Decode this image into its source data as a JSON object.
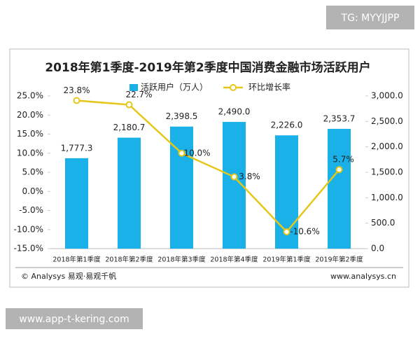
{
  "tag": "TG: MYYJJPP",
  "chart_data": {
    "type": "bar-line",
    "title": "2018年第1季度-2019年第2季度中国消费金融市场活跃用户",
    "categories": [
      "2018年第1季度",
      "2018年第2季度",
      "2018年第3季度",
      "2018年第4季度",
      "2019年第1季度",
      "2019年第2季度"
    ],
    "series": [
      {
        "name": "活跃用户（万人）",
        "type": "bar",
        "color": "#1ab0e8",
        "axis": "y2",
        "values": [
          1777.3,
          2180.7,
          2398.5,
          2490.0,
          2226.0,
          2353.7
        ],
        "value_labels": [
          "1,777.3",
          "2,180.7",
          "2,398.5",
          "2,490.0",
          "2,226.0",
          "2,353.7"
        ]
      },
      {
        "name": "环比增长率",
        "type": "line",
        "color": "#e6c619",
        "axis": "y",
        "values": [
          23.8,
          22.7,
          10.0,
          3.8,
          -10.6,
          5.7
        ],
        "value_labels": [
          "23.8%",
          "22.7%",
          "10.0%",
          "3.8%",
          "-10.6%",
          "5.7%"
        ]
      }
    ],
    "ylim": [
      -15,
      25
    ],
    "yticks": [
      {
        "value": -15,
        "label": "-15.0%"
      },
      {
        "value": -10,
        "label": "-10.0%"
      },
      {
        "value": -5,
        "label": "-5.0%"
      },
      {
        "value": 0,
        "label": "0.0%"
      },
      {
        "value": 5,
        "label": "5.0%"
      },
      {
        "value": 10,
        "label": "10.0%"
      },
      {
        "value": 15,
        "label": "15.0%"
      },
      {
        "value": 20,
        "label": "20.0%"
      },
      {
        "value": 25,
        "label": "25.0%"
      }
    ],
    "y2lim": [
      0,
      3000
    ],
    "y2ticks": [
      {
        "value": 0,
        "label": "0.0"
      },
      {
        "value": 500,
        "label": "500.0"
      },
      {
        "value": 1000,
        "label": "1,000.0"
      },
      {
        "value": 1500,
        "label": "1,500.0"
      },
      {
        "value": 2000,
        "label": "2,000.0"
      },
      {
        "value": 2500,
        "label": "2,500.0"
      },
      {
        "value": 3000,
        "label": "3,000.0"
      }
    ],
    "grid": false,
    "legend": "top"
  },
  "footer": {
    "source": "© Analysys 易观·易观千帆",
    "url": "www.analysys.cn"
  },
  "site": "www.app-t-kering.com"
}
